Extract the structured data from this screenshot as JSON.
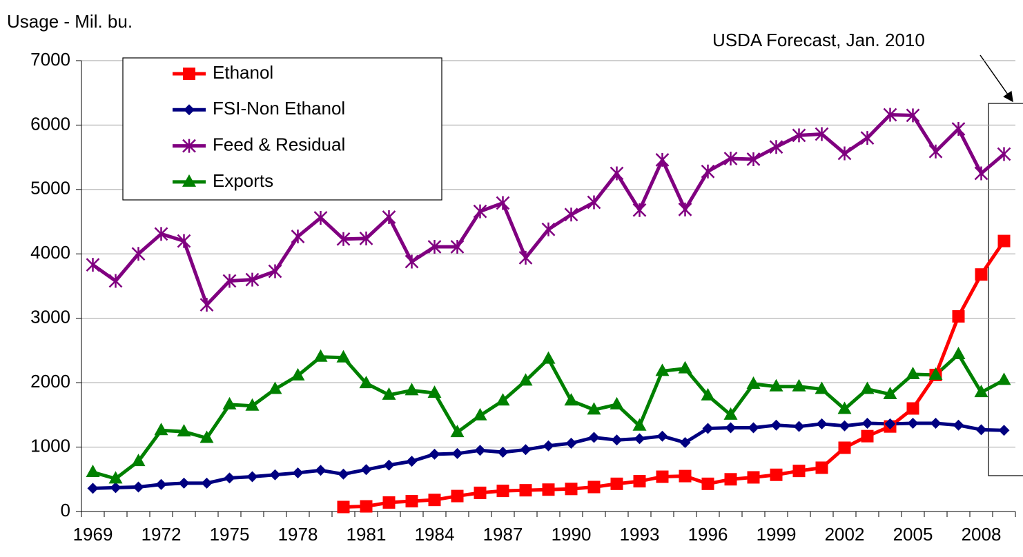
{
  "chart_data": {
    "type": "line",
    "y_label": "Usage - Mil. bu.",
    "annotation": "USDA Forecast, Jan. 2010",
    "categories": [
      "1969",
      null,
      null,
      "1972",
      null,
      null,
      "1975",
      null,
      null,
      "1978",
      null,
      null,
      "1981",
      null,
      null,
      "1984",
      null,
      null,
      "1987",
      null,
      null,
      "1990",
      null,
      null,
      "1993",
      null,
      null,
      "1996",
      null,
      null,
      "1999",
      null,
      null,
      "2002",
      null,
      null,
      "2005",
      null,
      null,
      "2008",
      null
    ],
    "ylim": [
      0,
      7000
    ],
    "yticks": [
      0,
      1000,
      2000,
      3000,
      4000,
      5000,
      6000,
      7000
    ],
    "grid": true,
    "legend_position": "upper left",
    "series": [
      {
        "name": "Ethanol",
        "color": "#ff0000",
        "marker": "square",
        "values": [
          null,
          null,
          null,
          null,
          null,
          null,
          null,
          null,
          null,
          null,
          null,
          70,
          80,
          140,
          160,
          180,
          240,
          290,
          320,
          330,
          340,
          350,
          380,
          430,
          470,
          540,
          550,
          430,
          500,
          530,
          570,
          630,
          680,
          990,
          1170,
          1320,
          1600,
          2120,
          3030,
          3680,
          4200
        ]
      },
      {
        "name": "FSI-Non Ethanol",
        "color": "#000080",
        "marker": "diamond",
        "values": [
          360,
          370,
          380,
          420,
          440,
          440,
          520,
          540,
          570,
          600,
          640,
          580,
          650,
          720,
          780,
          890,
          900,
          950,
          920,
          960,
          1020,
          1060,
          1150,
          1110,
          1130,
          1170,
          1070,
          1290,
          1300,
          1300,
          1340,
          1320,
          1360,
          1330,
          1370,
          1360,
          1370,
          1370,
          1340,
          1270,
          1260
        ]
      },
      {
        "name": "Feed & Residual",
        "color": "#800080",
        "marker": "star",
        "values": [
          3830,
          3580,
          4000,
          4310,
          4200,
          3210,
          3580,
          3600,
          3730,
          4270,
          4560,
          4230,
          4240,
          4570,
          3880,
          4110,
          4110,
          4660,
          4790,
          3940,
          4380,
          4610,
          4800,
          5250,
          4680,
          5460,
          4690,
          5280,
          5480,
          5470,
          5660,
          5840,
          5860,
          5560,
          5800,
          6160,
          6150,
          5590,
          5940,
          5250,
          5550
        ]
      },
      {
        "name": "Exports",
        "color": "#008000",
        "marker": "triangle",
        "values": [
          610,
          510,
          780,
          1260,
          1240,
          1140,
          1660,
          1640,
          1900,
          2110,
          2400,
          2390,
          1990,
          1810,
          1880,
          1840,
          1230,
          1490,
          1720,
          2030,
          2370,
          1720,
          1580,
          1660,
          1330,
          2180,
          2220,
          1800,
          1500,
          1980,
          1940,
          1940,
          1900,
          1590,
          1900,
          1820,
          2130,
          2120,
          2440,
          1850,
          2040
        ]
      }
    ]
  }
}
